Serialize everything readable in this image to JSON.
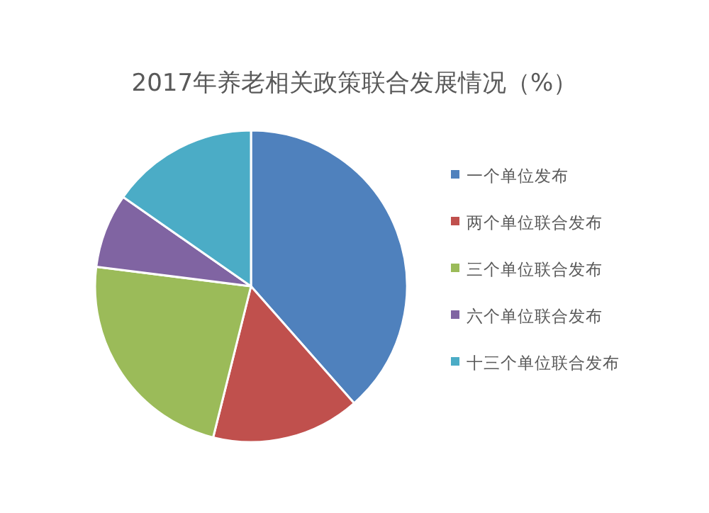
{
  "chart_data": {
    "type": "pie",
    "title": "2017年养老相关政策联合发展情况（%）",
    "categories": [
      "一个单位发布",
      "两个单位联合发布",
      "三个单位联合发布",
      "六个单位联合发布",
      "十三个单位联合发布"
    ],
    "values": [
      38.5,
      15.4,
      23.1,
      7.7,
      15.3
    ],
    "colors": [
      "#4f81bd",
      "#c0504d",
      "#9bbb59",
      "#8064a2",
      "#4bacc6"
    ],
    "legend": "right"
  }
}
